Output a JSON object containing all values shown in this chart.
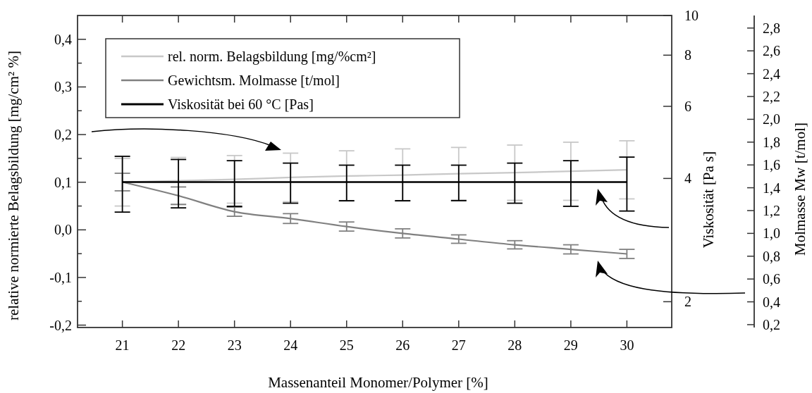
{
  "chart_data": {
    "type": "line",
    "xlabel": "Massenanteil Monomer/Polymer [%]",
    "ylabel": "relative normierte Belagsbildung [mg/cm² %]",
    "y2label": "Viskosität [Pa s]",
    "y3label": "Molmasse Mw [t/mol]",
    "x": [
      21,
      22,
      23,
      24,
      25,
      26,
      27,
      28,
      29,
      30
    ],
    "xlim": [
      20.2,
      30.8
    ],
    "xticks": [
      21,
      22,
      23,
      24,
      25,
      26,
      27,
      28,
      29,
      30
    ],
    "ylim": [
      -0.205,
      0.45
    ],
    "yticks": [
      {
        "value": -0.2,
        "label": "-0,2"
      },
      {
        "value": -0.15,
        "label": null
      },
      {
        "value": -0.1,
        "label": "-0,1"
      },
      {
        "value": -0.05,
        "label": null
      },
      {
        "value": 0,
        "label": "0,0"
      },
      {
        "value": 0.05,
        "label": null
      },
      {
        "value": 0.1,
        "label": "0,1"
      },
      {
        "value": 0.15,
        "label": null
      },
      {
        "value": 0.2,
        "label": "0,2"
      },
      {
        "value": 0.25,
        "label": null
      },
      {
        "value": 0.3,
        "label": "0,3"
      },
      {
        "value": 0.35,
        "label": null
      },
      {
        "value": 0.4,
        "label": "0,4"
      }
    ],
    "log": "y2",
    "y2lim": [
      1.73,
      10
    ],
    "y2ticks": [
      2,
      4,
      6,
      8,
      10
    ],
    "y3lim": [
      0.175,
      2.91
    ],
    "y3ticks": [
      {
        "value": 0.2,
        "label": "0,2"
      },
      {
        "value": 0.4,
        "label": "0,4"
      },
      {
        "value": 0.6,
        "label": "0,6"
      },
      {
        "value": 0.8,
        "label": "0,8"
      },
      {
        "value": 1.0,
        "label": "1,0"
      },
      {
        "value": 1.2,
        "label": "1,2"
      },
      {
        "value": 1.4,
        "label": "1,4"
      },
      {
        "value": 1.6,
        "label": "1,6"
      },
      {
        "value": 1.8,
        "label": "1,8"
      },
      {
        "value": 2.0,
        "label": "2,0"
      },
      {
        "value": 2.2,
        "label": "2,2"
      },
      {
        "value": 2.4,
        "label": "2,4"
      },
      {
        "value": 2.6,
        "label": "2,6"
      },
      {
        "value": 2.8,
        "label": "2,8"
      }
    ],
    "grid": false,
    "legend": "top left",
    "marker": "none",
    "line_style": "solid",
    "series": [
      {
        "name": "rel. norm. Belagsbildung [mg/%cm²]",
        "color": "#c8c8c8",
        "values": [
          0.1,
          0.103,
          0.106,
          0.11,
          0.113,
          0.115,
          0.118,
          0.12,
          0.123,
          0.126
        ],
        "errors": [
          0.05,
          0.049,
          0.05,
          0.051,
          0.053,
          0.055,
          0.055,
          0.058,
          0.061,
          0.061
        ]
      },
      {
        "name": "Gewichtsm. Molmasse [t/mol]",
        "color": "#808080",
        "axis": "y3",
        "values": [
          1.45,
          1.33,
          1.19,
          1.13,
          1.06,
          1.0,
          0.95,
          0.9,
          0.86,
          0.82
        ],
        "errors": [
          0.077,
          0.077,
          0.04,
          0.043,
          0.04,
          0.04,
          0.037,
          0.036,
          0.04,
          0.04
        ]
      },
      {
        "name": "Viskosität bei 60 °C [Pas]",
        "color": "#000000",
        "axis": "y2",
        "values": [
          3.92,
          3.92,
          3.92,
          3.92,
          3.92,
          3.92,
          3.92,
          3.92,
          3.92,
          3.92
        ],
        "errors": [
          0.61,
          0.53,
          0.5,
          0.44,
          0.39,
          0.39,
          0.39,
          0.44,
          0.5,
          0.59
        ]
      }
    ]
  }
}
